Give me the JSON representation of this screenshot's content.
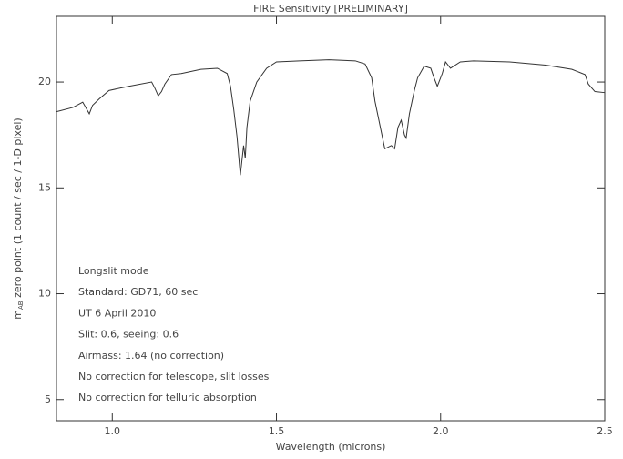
{
  "chart_data": {
    "type": "line",
    "title": "FIRE Sensitivity [PRELIMINARY]",
    "x_label": "Wavelength (microns)",
    "y_label": {
      "main": "m",
      "sub": "AB",
      "rest": " zero point (1 count / sec / 1-D pixel)"
    },
    "xlim": [
      0.83,
      2.5
    ],
    "ylim": [
      4,
      23.1
    ],
    "xticks": [
      {
        "value": 1.0,
        "label": "1.0"
      },
      {
        "value": 1.5,
        "label": "1.5"
      },
      {
        "value": 2.0,
        "label": "2.0"
      },
      {
        "value": 2.5,
        "label": "2.5"
      }
    ],
    "yticks": [
      5,
      10,
      15,
      20
    ],
    "series": [
      {
        "color": "#333333",
        "x": [
          0.83,
          0.88,
          0.91,
          0.93,
          0.94,
          0.96,
          0.99,
          1.05,
          1.12,
          1.13,
          1.14,
          1.15,
          1.16,
          1.18,
          1.21,
          1.27,
          1.32,
          1.35,
          1.36,
          1.37,
          1.38,
          1.39,
          1.4,
          1.405,
          1.41,
          1.42,
          1.44,
          1.47,
          1.5,
          1.57,
          1.66,
          1.74,
          1.77,
          1.79,
          1.8,
          1.82,
          1.83,
          1.85,
          1.86,
          1.87,
          1.88,
          1.89,
          1.895,
          1.905,
          1.92,
          1.93,
          1.95,
          1.97,
          1.98,
          1.99,
          2.005,
          2.015,
          2.03,
          2.06,
          2.1,
          2.21,
          2.32,
          2.4,
          2.44,
          2.45,
          2.47,
          2.5
        ],
        "values": [
          18.6,
          18.8,
          19.05,
          18.5,
          18.9,
          19.2,
          19.6,
          19.8,
          20.0,
          19.7,
          19.35,
          19.55,
          19.9,
          20.35,
          20.4,
          20.6,
          20.65,
          20.4,
          19.8,
          18.7,
          17.4,
          15.6,
          17.0,
          16.4,
          17.85,
          19.1,
          20.0,
          20.65,
          20.95,
          21.0,
          21.05,
          21.0,
          20.85,
          20.2,
          19.1,
          17.6,
          16.85,
          17.0,
          16.85,
          17.85,
          18.2,
          17.5,
          17.35,
          18.5,
          19.6,
          20.2,
          20.75,
          20.65,
          20.2,
          19.8,
          20.4,
          20.95,
          20.65,
          20.95,
          21.0,
          20.95,
          20.8,
          20.6,
          20.35,
          19.9,
          19.55,
          19.5
        ]
      }
    ],
    "annotations": [
      "Longslit mode",
      "Standard: GD71, 60 sec",
      "UT 6 April 2010",
      "Slit: 0.6, seeing: 0.6",
      "Airmass: 1.64 (no correction)",
      "No correction for telescope, slit losses",
      "No correction for telluric absorption"
    ]
  }
}
